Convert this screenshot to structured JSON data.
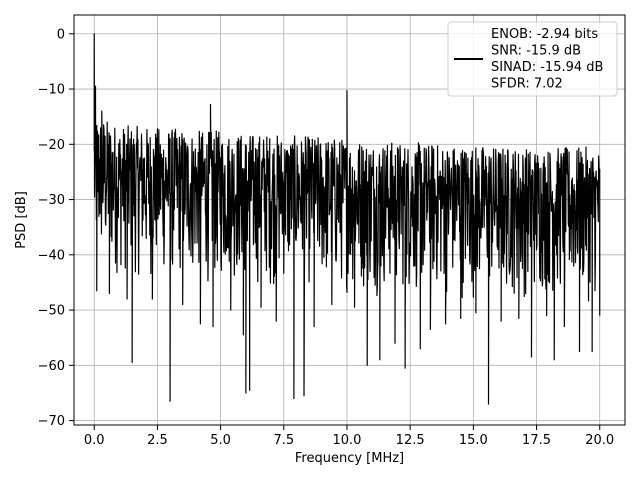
{
  "chart_data": {
    "type": "line",
    "title": "",
    "xlabel": "Frequency [MHz]",
    "ylabel": "PSD [dB]",
    "xlim": [
      -0.8,
      21.0
    ],
    "ylim": [
      -70.8,
      3.4
    ],
    "xticks": [
      0.0,
      2.5,
      5.0,
      7.5,
      10.0,
      12.5,
      15.0,
      17.5,
      20.0
    ],
    "xtick_labels": [
      "0.0",
      "2.5",
      "5.0",
      "7.5",
      "10.0",
      "12.5",
      "15.0",
      "17.5",
      "20.0"
    ],
    "yticks": [
      0,
      -10,
      -20,
      -30,
      -40,
      -50,
      -60,
      -70
    ],
    "ytick_labels": [
      "0",
      "−10",
      "−20",
      "−30",
      "−40",
      "−50",
      "−60",
      "−70"
    ],
    "grid": true,
    "legend_position": "top-right",
    "series": [
      {
        "name": "ENOB: -2.94 bits\nSNR: -15.9 dB\nSINAD: -15.94 dB\nSFDR: 7.02",
        "color": "#000000",
        "description_of_shape": "dense noise floor roughly between -20 and -45 dB across 0-20 MHz with deep nulls down to about -67 dB",
        "peaks": [
          {
            "x": 0.0,
            "y": 0.0
          },
          {
            "x": 0.05,
            "y": -9.5
          },
          {
            "x": 0.3,
            "y": -14.0
          },
          {
            "x": 4.6,
            "y": -12.8
          },
          {
            "x": 10.0,
            "y": -10.3
          }
        ],
        "upper_envelope": [
          {
            "x": 0.2,
            "y": -14.5
          },
          {
            "x": 0.5,
            "y": -15.5
          },
          {
            "x": 1.0,
            "y": -16.5
          },
          {
            "x": 2.0,
            "y": -16.8
          },
          {
            "x": 3.0,
            "y": -17.0
          },
          {
            "x": 4.0,
            "y": -17.5
          },
          {
            "x": 5.0,
            "y": -17.5
          },
          {
            "x": 6.0,
            "y": -18.0
          },
          {
            "x": 7.0,
            "y": -18.0
          },
          {
            "x": 8.0,
            "y": -18.5
          },
          {
            "x": 9.0,
            "y": -18.5
          },
          {
            "x": 10.5,
            "y": -19.0
          },
          {
            "x": 12.0,
            "y": -19.5
          },
          {
            "x": 13.5,
            "y": -19.8
          },
          {
            "x": 15.0,
            "y": -20.0
          },
          {
            "x": 17.0,
            "y": -20.5
          },
          {
            "x": 18.5,
            "y": -20.5
          },
          {
            "x": 20.0,
            "y": -20.5
          }
        ],
        "lower_envelope": [
          {
            "x": 0.2,
            "y": -44.0
          },
          {
            "x": 1.0,
            "y": -44.5
          },
          {
            "x": 2.5,
            "y": -45.0
          },
          {
            "x": 5.0,
            "y": -46.0
          },
          {
            "x": 7.5,
            "y": -46.5
          },
          {
            "x": 10.0,
            "y": -47.5
          },
          {
            "x": 12.5,
            "y": -48.0
          },
          {
            "x": 15.0,
            "y": -48.5
          },
          {
            "x": 17.5,
            "y": -48.5
          },
          {
            "x": 20.0,
            "y": -49.0
          }
        ],
        "nulls": [
          {
            "x": 0.1,
            "y": -46.5
          },
          {
            "x": 0.6,
            "y": -47.0
          },
          {
            "x": 1.3,
            "y": -48.0
          },
          {
            "x": 1.5,
            "y": -59.5
          },
          {
            "x": 2.3,
            "y": -48.0
          },
          {
            "x": 3.0,
            "y": -66.5
          },
          {
            "x": 3.5,
            "y": -49.0
          },
          {
            "x": 4.2,
            "y": -52.5
          },
          {
            "x": 4.7,
            "y": -53.0
          },
          {
            "x": 5.4,
            "y": -50.0
          },
          {
            "x": 5.9,
            "y": -54.5
          },
          {
            "x": 6.0,
            "y": -65.0
          },
          {
            "x": 6.15,
            "y": -64.5
          },
          {
            "x": 6.6,
            "y": -49.5
          },
          {
            "x": 7.2,
            "y": -52.0
          },
          {
            "x": 7.9,
            "y": -66.0
          },
          {
            "x": 8.3,
            "y": -65.5
          },
          {
            "x": 8.7,
            "y": -53.0
          },
          {
            "x": 9.4,
            "y": -49.0
          },
          {
            "x": 10.3,
            "y": -49.5
          },
          {
            "x": 10.8,
            "y": -60.0
          },
          {
            "x": 11.3,
            "y": -59.0
          },
          {
            "x": 11.9,
            "y": -56.0
          },
          {
            "x": 12.3,
            "y": -60.5
          },
          {
            "x": 12.9,
            "y": -57.0
          },
          {
            "x": 13.3,
            "y": -53.5
          },
          {
            "x": 13.9,
            "y": -52.5
          },
          {
            "x": 14.5,
            "y": -51.5
          },
          {
            "x": 15.1,
            "y": -50.5
          },
          {
            "x": 15.6,
            "y": -67.0
          },
          {
            "x": 16.1,
            "y": -52.0
          },
          {
            "x": 16.8,
            "y": -51.5
          },
          {
            "x": 17.3,
            "y": -58.5
          },
          {
            "x": 17.9,
            "y": -51.0
          },
          {
            "x": 18.2,
            "y": -59.0
          },
          {
            "x": 18.6,
            "y": -53.0
          },
          {
            "x": 19.2,
            "y": -57.5
          },
          {
            "x": 19.7,
            "y": -57.5
          },
          {
            "x": 20.0,
            "y": -51.0
          }
        ]
      }
    ]
  }
}
